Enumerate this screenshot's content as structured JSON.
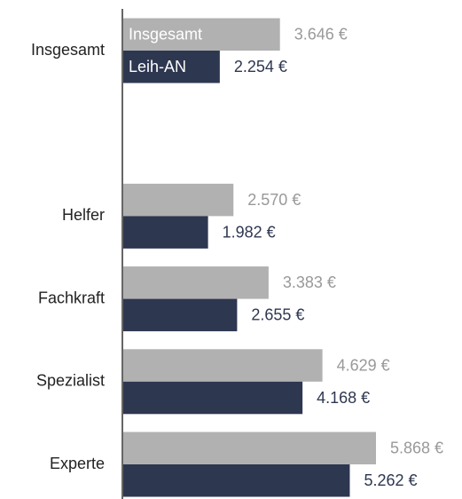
{
  "chart_data": {
    "type": "hbar",
    "categories": [
      "Insgesamt",
      null,
      "Helfer",
      "Fachkraft",
      "Spezialist",
      "Experte"
    ],
    "series": [
      {
        "name": "Insgesamt",
        "color": "#b1b1b1",
        "label_color": "#999999",
        "values": [
          3646,
          null,
          2570,
          3383,
          4629,
          5868
        ],
        "value_labels": [
          "3.646 €",
          null,
          "2.570 €",
          "3.383 €",
          "4.629 €",
          "5.868 €"
        ]
      },
      {
        "name": "Leih-AN",
        "color": "#2e3750",
        "label_color": "#2e3750",
        "values": [
          2254,
          null,
          1982,
          2655,
          4168,
          5262
        ],
        "value_labels": [
          "2.254 €",
          null,
          "1.982 €",
          "2.655 €",
          "4.168 €",
          "5.262 €"
        ]
      }
    ]
  }
}
